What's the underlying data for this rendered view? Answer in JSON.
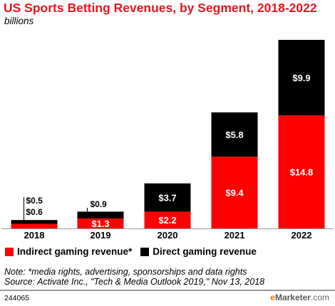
{
  "title": "US Sports Betting Revenues, by Segment, 2018-2022",
  "subtitle": "billions",
  "legend": {
    "indirect": "Indirect gaming revenue*",
    "direct": "Direct gaming revenue"
  },
  "note_lines": [
    "Note: *media rights, advertising, sponsorships and data rights",
    "Source: Activate Inc., \"Tech & Media Outlook 2019,\" Nov 13, 2018"
  ],
  "chart_id": "244065",
  "logo": {
    "prefix": "e",
    "rest": "Marketer",
    "suffix": ".com"
  },
  "colors": {
    "indirect": "#ff0000",
    "direct": "#000000",
    "title": "#e8141b"
  },
  "chart_data": {
    "type": "bar",
    "stacked": true,
    "categories": [
      "2018",
      "2019",
      "2020",
      "2021",
      "2022"
    ],
    "series": [
      {
        "name": "Indirect gaming revenue*",
        "values": [
          0.6,
          1.3,
          2.2,
          9.4,
          14.8
        ],
        "labels": [
          "$0.6",
          "$1.3",
          "$2.2",
          "$9.4",
          "$14.8"
        ]
      },
      {
        "name": "Direct gaming revenue",
        "values": [
          0.5,
          0.9,
          3.7,
          5.8,
          9.9
        ],
        "labels": [
          "$0.5",
          "$0.9",
          "$3.7",
          "$5.8",
          "$9.9"
        ]
      }
    ],
    "ylim": [
      0,
      24.7
    ],
    "grid": false,
    "legend_position": "bottom-left"
  }
}
